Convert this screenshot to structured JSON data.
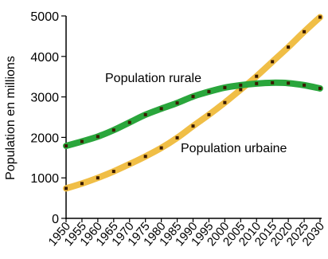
{
  "chart_data": {
    "type": "line",
    "ylabel": "Population en millions",
    "xlabel": "",
    "x": [
      "1950",
      "1955",
      "1960",
      "1965",
      "1970",
      "1975",
      "1980",
      "1985",
      "1990",
      "1995",
      "2000",
      "2005",
      "2010",
      "2015",
      "2020",
      "2025",
      "2030"
    ],
    "ylim": [
      0,
      5000
    ],
    "yticks": [
      0,
      1000,
      2000,
      3000,
      4000,
      5000
    ],
    "grid": false,
    "series": [
      {
        "name": "Population rurale",
        "color": "#2aa63c",
        "values": [
          1790,
          1900,
          2020,
          2180,
          2370,
          2560,
          2710,
          2850,
          3010,
          3130,
          3230,
          3290,
          3330,
          3350,
          3340,
          3290,
          3210
        ]
      },
      {
        "name": "Population urbaine",
        "color": "#f0be46",
        "values": [
          740,
          860,
          1000,
          1160,
          1340,
          1530,
          1740,
          1990,
          2280,
          2560,
          2860,
          3180,
          3510,
          3870,
          4230,
          4610,
          4970
        ]
      }
    ],
    "marker_color": "#3a1a00"
  }
}
